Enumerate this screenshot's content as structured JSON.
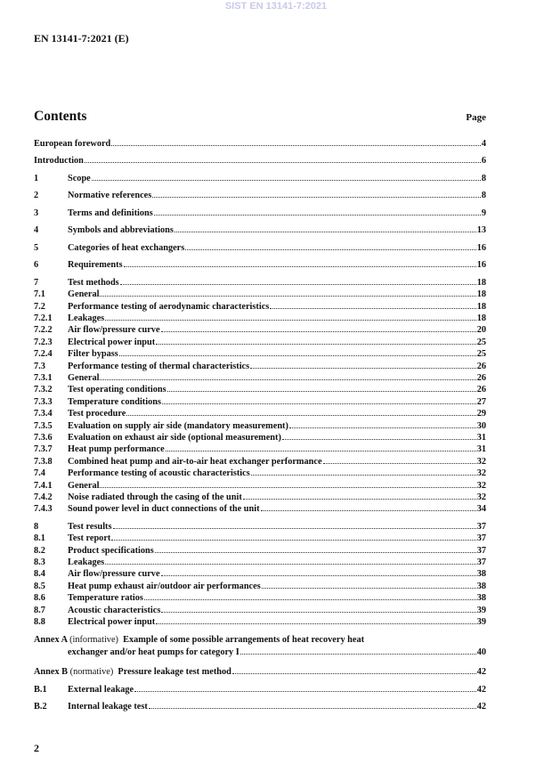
{
  "watermark": "SIST EN 13141-7:2021",
  "header": "EN 13141-7:2021 (E)",
  "contents_title": "Contents",
  "page_label": "Page",
  "entries": [
    {
      "num": "",
      "title": "European foreword",
      "page": "4"
    },
    {
      "num": "",
      "title": "Introduction",
      "page": "6"
    },
    {
      "num": "1",
      "title": "Scope",
      "page": "8"
    },
    {
      "num": "2",
      "title": "Normative references",
      "page": "8"
    },
    {
      "num": "3",
      "title": "Terms and definitions",
      "page": "9"
    },
    {
      "num": "4",
      "title": "Symbols and abbreviations",
      "page": "13"
    },
    {
      "num": "5",
      "title": "Categories of heat exchangers",
      "page": "16"
    },
    {
      "num": "6",
      "title": "Requirements",
      "page": "16"
    },
    {
      "num": "7",
      "title": "Test methods",
      "page": "18"
    },
    {
      "num": "7.1",
      "title": "General",
      "page": "18"
    },
    {
      "num": "7.2",
      "title": "Performance testing of aerodynamic characteristics",
      "page": "18"
    },
    {
      "num": "7.2.1",
      "title": "Leakages",
      "page": "18"
    },
    {
      "num": "7.2.2",
      "title": "Air flow/pressure curve",
      "page": "20"
    },
    {
      "num": "7.2.3",
      "title": "Electrical power input",
      "page": "25"
    },
    {
      "num": "7.2.4",
      "title": "Filter bypass",
      "page": "25"
    },
    {
      "num": "7.3",
      "title": "Performance testing of thermal characteristics",
      "page": "26"
    },
    {
      "num": "7.3.1",
      "title": "General",
      "page": "26"
    },
    {
      "num": "7.3.2",
      "title": "Test operating conditions",
      "page": "26"
    },
    {
      "num": "7.3.3",
      "title": "Temperature conditions",
      "page": "27"
    },
    {
      "num": "7.3.4",
      "title": "Test procedure",
      "page": "29"
    },
    {
      "num": "7.3.5",
      "title": "Evaluation on supply air side (mandatory measurement)",
      "page": "30"
    },
    {
      "num": "7.3.6",
      "title": "Evaluation on exhaust air side (optional measurement)",
      "page": "31"
    },
    {
      "num": "7.3.7",
      "title": "Heat pump performance",
      "page": "31"
    },
    {
      "num": "7.3.8",
      "title": "Combined heat pump and air-to-air heat exchanger performance",
      "page": "32"
    },
    {
      "num": "7.4",
      "title": "Performance testing of acoustic characteristics",
      "page": "32"
    },
    {
      "num": "7.4.1",
      "title": "General",
      "page": "32"
    },
    {
      "num": "7.4.2",
      "title": "Noise radiated through the casing of the unit",
      "page": "32"
    },
    {
      "num": "7.4.3",
      "title": "Sound power level in duct connections of the unit",
      "page": "34"
    },
    {
      "num": "8",
      "title": "Test results",
      "page": "37"
    },
    {
      "num": "8.1",
      "title": "Test report",
      "page": "37"
    },
    {
      "num": "8.2",
      "title": "Product specifications",
      "page": "37"
    },
    {
      "num": "8.3",
      "title": "Leakages",
      "page": "37"
    },
    {
      "num": "8.4",
      "title": "Air flow/pressure curve",
      "page": "38"
    },
    {
      "num": "8.5",
      "title": "Heat pump exhaust air/outdoor air performances",
      "page": "38"
    },
    {
      "num": "8.6",
      "title": "Temperature ratios",
      "page": "38"
    },
    {
      "num": "8.7",
      "title": "Acoustic characteristics",
      "page": "39"
    },
    {
      "num": "8.8",
      "title": "Electrical power input",
      "page": "39"
    }
  ],
  "annex_a": {
    "label": "Annex A",
    "type": "(informative)",
    "title_line1": "Example of some possible arrangements of heat recovery heat",
    "title_line2": "exchanger and/or heat pumps for category I",
    "page": "40"
  },
  "annex_b": {
    "label": "Annex B",
    "type": "(normative)",
    "title": "Pressure leakage test method",
    "page": "42"
  },
  "annex_entries": [
    {
      "num": "B.1",
      "title": "External leakage",
      "page": "42"
    },
    {
      "num": "B.2",
      "title": "Internal leakage test",
      "page": "42"
    }
  ],
  "page_number": "2"
}
